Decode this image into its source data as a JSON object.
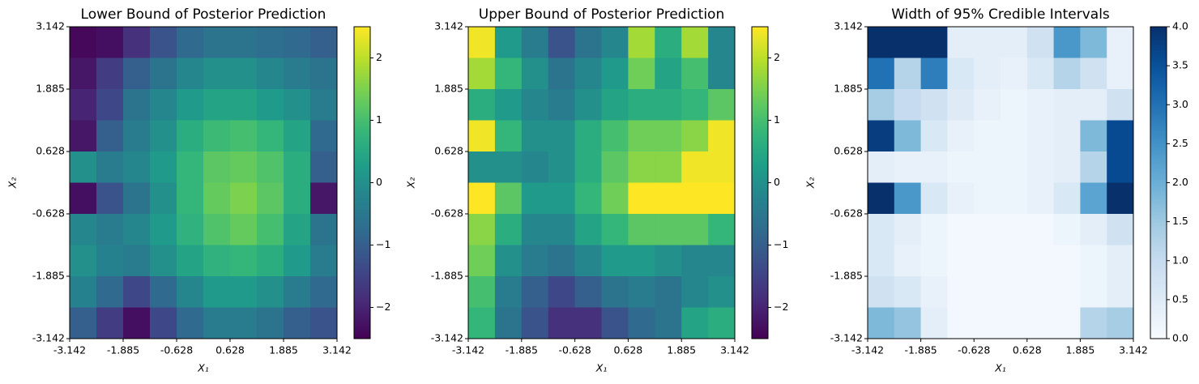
{
  "chart_data": [
    {
      "type": "heatmap",
      "title": "Lower Bound of Posterior Prediction",
      "xlabel": "X₁",
      "ylabel": "X₂",
      "xlim": [
        -3.142,
        3.142
      ],
      "ylim": [
        -3.142,
        3.142
      ],
      "xticks": [
        -3.142,
        -1.885,
        -0.628,
        0.628,
        1.885,
        3.142
      ],
      "yticks": [
        -3.142,
        -1.885,
        -0.628,
        0.628,
        1.885,
        3.142
      ],
      "colormap": "viridis",
      "clim": [
        -2.5,
        2.5
      ],
      "cticks": [
        {
          "value": -2,
          "label": "−2"
        },
        {
          "value": -1,
          "label": "−1"
        },
        0,
        1,
        2
      ],
      "z": [
        [
          -2.4,
          -2.3,
          -1.8,
          -1.2,
          -0.8,
          -0.6,
          -0.6,
          -0.7,
          -0.8,
          -1.0
        ],
        [
          -2.2,
          -1.6,
          -1.0,
          -0.6,
          -0.2,
          0.0,
          0.0,
          -0.2,
          -0.4,
          -0.6
        ],
        [
          -2.0,
          -1.4,
          -0.6,
          -0.2,
          0.2,
          0.4,
          0.4,
          0.2,
          0.0,
          -0.4
        ],
        [
          -2.2,
          -1.0,
          -0.4,
          0.0,
          0.6,
          0.9,
          1.0,
          0.8,
          0.4,
          -0.8
        ],
        [
          0.0,
          -0.4,
          -0.2,
          0.2,
          0.8,
          1.2,
          1.3,
          1.1,
          0.6,
          -1.0
        ],
        [
          -2.3,
          -1.2,
          -0.6,
          0.0,
          0.8,
          1.3,
          1.5,
          1.2,
          0.6,
          -2.2
        ],
        [
          -0.2,
          -0.4,
          -0.2,
          0.2,
          0.7,
          1.1,
          1.3,
          1.0,
          0.4,
          -0.6
        ],
        [
          0.0,
          -0.3,
          -0.4,
          0.0,
          0.4,
          0.7,
          0.8,
          0.6,
          0.2,
          -0.4
        ],
        [
          -0.3,
          -0.8,
          -1.4,
          -0.8,
          -0.2,
          0.2,
          0.2,
          0.0,
          -0.4,
          -0.8
        ],
        [
          -1.0,
          -1.6,
          -2.3,
          -1.4,
          -0.8,
          -0.4,
          -0.4,
          -0.6,
          -1.0,
          -1.2
        ]
      ]
    },
    {
      "type": "heatmap",
      "title": "Upper Bound of Posterior Prediction",
      "xlabel": "X₁",
      "ylabel": "X₂",
      "xlim": [
        -3.142,
        3.142
      ],
      "ylim": [
        -3.142,
        3.142
      ],
      "xticks": [
        -3.142,
        -1.885,
        -0.628,
        0.628,
        1.885,
        3.142
      ],
      "yticks": [
        -3.142,
        -1.885,
        -0.628,
        0.628,
        1.885,
        3.142
      ],
      "colormap": "viridis",
      "clim": [
        -2.5,
        2.5
      ],
      "cticks": [
        {
          "value": -2,
          "label": "−2"
        },
        {
          "value": -1,
          "label": "−1"
        },
        0,
        1,
        2
      ],
      "z": [
        [
          2.4,
          0.2,
          -0.4,
          -1.2,
          -0.6,
          -0.2,
          1.8,
          0.6,
          1.8,
          -0.2
        ],
        [
          1.8,
          0.8,
          0.0,
          -0.6,
          -0.2,
          0.2,
          1.4,
          0.4,
          1.0,
          -0.2
        ],
        [
          0.6,
          0.2,
          -0.2,
          -0.4,
          0.0,
          0.4,
          0.6,
          0.6,
          0.8,
          1.2
        ],
        [
          2.4,
          0.8,
          0.0,
          0.0,
          0.6,
          1.0,
          1.4,
          1.4,
          1.6,
          2.4
        ],
        [
          0.0,
          0.0,
          -0.2,
          0.0,
          0.6,
          1.2,
          1.6,
          1.6,
          2.4,
          2.4
        ],
        [
          2.5,
          1.2,
          0.2,
          0.2,
          0.8,
          1.4,
          2.5,
          2.5,
          2.5,
          2.5
        ],
        [
          1.6,
          0.6,
          -0.2,
          -0.2,
          0.4,
          0.8,
          1.2,
          1.2,
          1.2,
          0.8
        ],
        [
          1.4,
          0.0,
          -0.4,
          -0.6,
          -0.2,
          0.2,
          0.2,
          0.0,
          -0.2,
          -0.2
        ],
        [
          1.0,
          -0.4,
          -1.0,
          -1.4,
          -1.0,
          -0.6,
          -0.4,
          -0.6,
          -0.2,
          0.0
        ],
        [
          0.8,
          -0.6,
          -1.2,
          -1.8,
          -1.8,
          -1.2,
          -0.8,
          -0.6,
          0.4,
          0.6
        ]
      ]
    },
    {
      "type": "heatmap",
      "title": "Width of 95% Credible Intervals",
      "xlabel": "X₁",
      "ylabel": "X₂",
      "xlim": [
        -3.142,
        3.142
      ],
      "ylim": [
        -3.142,
        3.142
      ],
      "xticks": [
        -3.142,
        -1.885,
        -0.628,
        0.628,
        1.885,
        3.142
      ],
      "yticks": [
        -3.142,
        -1.885,
        -0.628,
        0.628,
        1.885,
        3.142
      ],
      "colormap": "blues",
      "clim": [
        0,
        4
      ],
      "cticks": [
        {
          "value": 0,
          "label": "0.0"
        },
        0.5,
        {
          "value": 1,
          "label": "1.0"
        },
        1.5,
        {
          "value": 2,
          "label": "2.0"
        },
        2.5,
        {
          "value": 3,
          "label": "3.0"
        },
        3.5,
        {
          "value": 4,
          "label": "4.0"
        }
      ],
      "z": [
        [
          4.0,
          4.0,
          4.0,
          0.4,
          0.4,
          0.4,
          0.8,
          2.4,
          1.8,
          0.3
        ],
        [
          3.0,
          1.2,
          2.8,
          0.6,
          0.4,
          0.3,
          0.6,
          1.2,
          0.8,
          0.3
        ],
        [
          1.4,
          1.0,
          0.8,
          0.5,
          0.3,
          0.2,
          0.3,
          0.4,
          0.4,
          0.8
        ],
        [
          3.8,
          1.8,
          0.6,
          0.3,
          0.2,
          0.2,
          0.3,
          0.4,
          1.8,
          3.6
        ],
        [
          0.4,
          0.3,
          0.3,
          0.2,
          0.2,
          0.2,
          0.3,
          0.4,
          1.2,
          3.6
        ],
        [
          4.0,
          2.4,
          0.6,
          0.3,
          0.2,
          0.2,
          0.3,
          0.6,
          2.2,
          4.0
        ],
        [
          0.6,
          0.4,
          0.2,
          0.1,
          0.1,
          0.1,
          0.1,
          0.2,
          0.4,
          0.8
        ],
        [
          0.6,
          0.3,
          0.2,
          0.1,
          0.1,
          0.1,
          0.1,
          0.1,
          0.2,
          0.4
        ],
        [
          0.8,
          0.6,
          0.3,
          0.1,
          0.1,
          0.1,
          0.1,
          0.1,
          0.2,
          0.4
        ],
        [
          1.8,
          1.6,
          0.4,
          0.1,
          0.1,
          0.1,
          0.1,
          0.1,
          1.2,
          1.4
        ]
      ]
    }
  ]
}
